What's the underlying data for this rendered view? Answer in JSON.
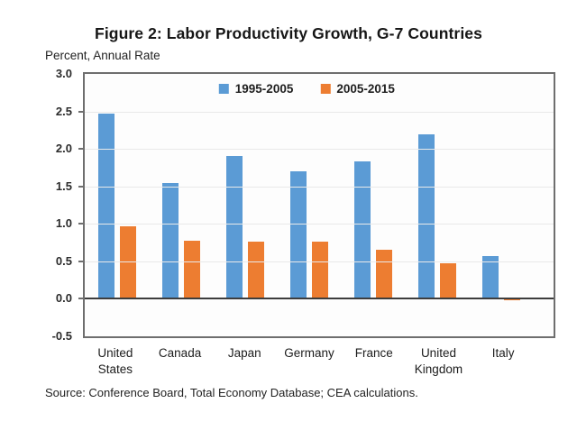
{
  "figure": {
    "title": "Figure 2: Labor Productivity Growth, G-7 Countries",
    "subtitle": "Percent, Annual Rate",
    "source": "Source: Conference Board, Total Economy Database; CEA calculations."
  },
  "chart_data": {
    "type": "bar",
    "title": "Figure 2: Labor Productivity Growth, G-7 Countries",
    "ylabel": "Percent, Annual Rate",
    "xlabel": "",
    "categories": [
      "United States",
      "Canada",
      "Japan",
      "Germany",
      "France",
      "United Kingdom",
      "Italy"
    ],
    "series": [
      {
        "name": "1995-2005",
        "color": "#5B9BD5",
        "values": [
          2.47,
          1.54,
          1.9,
          1.7,
          1.83,
          2.2,
          0.57
        ]
      },
      {
        "name": "2005-2015",
        "color": "#ED7D31",
        "values": [
          0.97,
          0.77,
          0.76,
          0.76,
          0.66,
          0.47,
          -0.02
        ]
      }
    ],
    "ylim": [
      -0.5,
      3.0
    ],
    "yticks": [
      3.0,
      2.5,
      2.0,
      1.5,
      1.0,
      0.5,
      0.0,
      -0.5
    ],
    "grid": true,
    "legend_position": "top-center",
    "colors": {
      "grid": "#e9e9e9",
      "zero_line": "#3d3d3d",
      "plot_border": "#6e6e6e"
    }
  }
}
